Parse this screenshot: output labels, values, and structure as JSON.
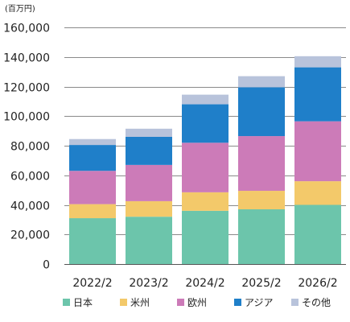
{
  "chart_data": {
    "type": "bar",
    "stacked": true,
    "unit_label": "(百万円)",
    "categories": [
      "2022/2",
      "2023/2",
      "2024/2",
      "2025/2",
      "2026/2"
    ],
    "series": [
      {
        "name": "日本",
        "color": "#6cc5ab",
        "values": [
          31000,
          32000,
          36000,
          37000,
          40000
        ]
      },
      {
        "name": "米州",
        "color": "#f3c96a",
        "values": [
          9500,
          10500,
          12500,
          12500,
          16000
        ]
      },
      {
        "name": "欧州",
        "color": "#cc7bb8",
        "values": [
          22500,
          24500,
          33500,
          37000,
          40500
        ]
      },
      {
        "name": "アジア",
        "color": "#1f7fc9",
        "values": [
          17500,
          19000,
          26000,
          33000,
          36500
        ]
      },
      {
        "name": "その他",
        "color": "#b8c3db",
        "values": [
          4000,
          5500,
          6500,
          7500,
          7500
        ]
      }
    ],
    "y_ticks": [
      "0",
      "20,000",
      "40,000",
      "60,000",
      "80,000",
      "100,000",
      "120,000",
      "140,000",
      "160,000"
    ],
    "ylim": [
      0,
      160000
    ],
    "grid": true,
    "legend_position": "bottom"
  }
}
